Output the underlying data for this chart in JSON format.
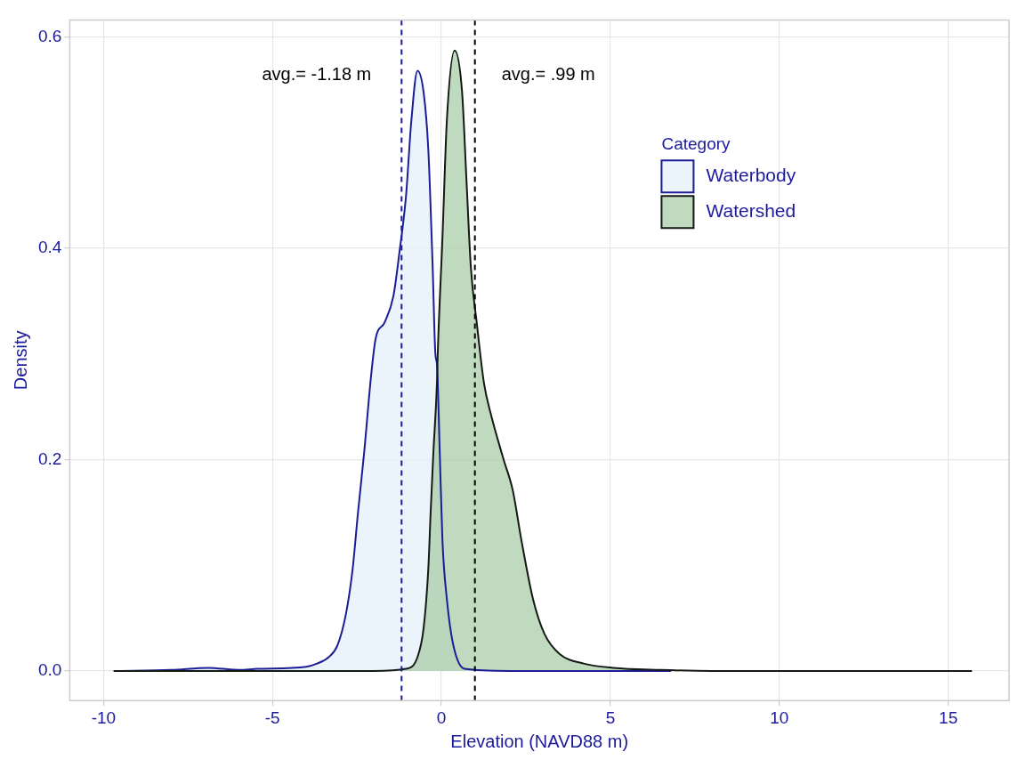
{
  "chart_data": {
    "type": "area",
    "xlabel": "Elevation (NAVD88 m)",
    "ylabel": "Density",
    "legend_title": "Category",
    "legend": "top right",
    "grid": true,
    "xlim": [
      -11,
      16.8
    ],
    "xticks": [
      -10,
      -5,
      0,
      5,
      10,
      15
    ],
    "ylim": [
      -0.028,
      0.616
    ],
    "yticks": [
      {
        "value": 0,
        "label": "0.0"
      },
      0.2,
      0.4,
      0.6
    ],
    "series": [
      {
        "name": "Waterbody",
        "color": "#e4f0f8",
        "x": [
          -9.7,
          -8,
          -6.9,
          -6,
          -5.45,
          -4,
          -3.68,
          -3.34,
          -3.08,
          -2.82,
          -2.63,
          -2.47,
          -2.29,
          -2.08,
          -1.95,
          -1.68,
          -1.42,
          -1.24,
          -1.05,
          -0.89,
          -0.71,
          -0.53,
          -0.39,
          -0.26,
          -0.18,
          -0.13,
          -0.05,
          0.03,
          0.16,
          0.34,
          0.68,
          2,
          6.8
        ],
        "values": [
          0,
          0.001,
          0.003,
          0.001,
          0.002,
          0.004,
          0.007,
          0.013,
          0.024,
          0.055,
          0.096,
          0.15,
          0.206,
          0.28,
          0.314,
          0.33,
          0.355,
          0.397,
          0.449,
          0.521,
          0.568,
          0.548,
          0.494,
          0.382,
          0.3,
          0.289,
          0.206,
          0.123,
          0.068,
          0.026,
          0.002,
          0,
          0
        ]
      },
      {
        "name": "Watershed",
        "color": "#a9cda9",
        "x": [
          -9.7,
          -5,
          -2,
          -1.05,
          -0.71,
          -0.53,
          -0.39,
          -0.32,
          -0.24,
          -0.13,
          -0.11,
          0.03,
          0.16,
          0.39,
          0.61,
          0.74,
          0.87,
          1.05,
          1.26,
          1.47,
          1.84,
          2.11,
          2.37,
          2.71,
          3.05,
          3.5,
          4.21,
          5.08,
          6.5,
          8,
          15.7
        ],
        "values": [
          0,
          0,
          0,
          0.002,
          0.013,
          0.04,
          0.096,
          0.15,
          0.206,
          0.275,
          0.3,
          0.41,
          0.521,
          0.587,
          0.548,
          0.465,
          0.382,
          0.328,
          0.272,
          0.242,
          0.2,
          0.171,
          0.123,
          0.068,
          0.035,
          0.016,
          0.007,
          0.003,
          0.001,
          0,
          0
        ]
      }
    ],
    "ref_lines": [
      {
        "axis": "x",
        "value": -1.18,
        "label": "avg.= -1.18 m",
        "color": "#1a1a9c",
        "line_style": "dashed"
      },
      {
        "axis": "x",
        "value": 0.99,
        "label": "avg.= .99 m",
        "color": "#000000",
        "line_style": "dashed"
      }
    ]
  }
}
